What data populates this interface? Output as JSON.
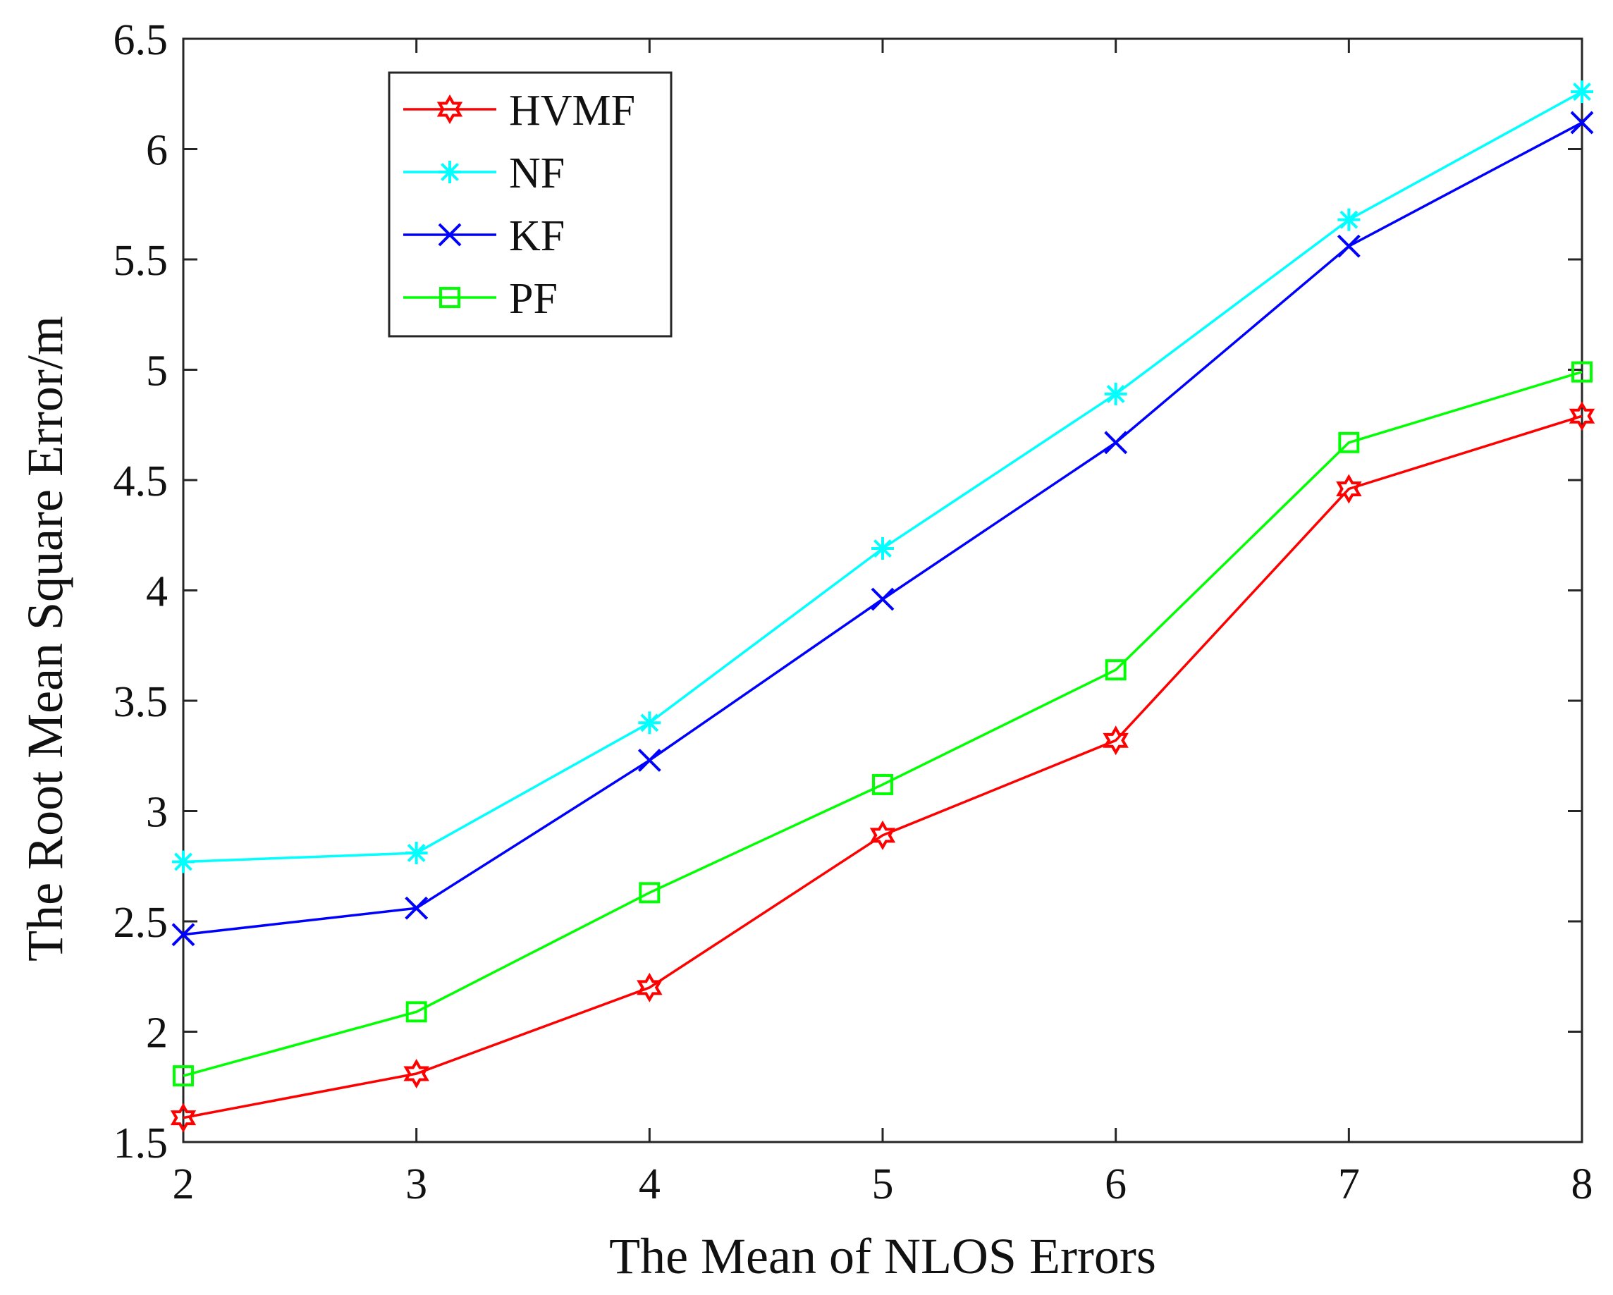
{
  "chart_data": {
    "type": "line",
    "title": "",
    "xlabel": "The Mean of NLOS Errors",
    "ylabel": "The Root Mean Square Error/m",
    "x": [
      2,
      3,
      4,
      5,
      6,
      7,
      8
    ],
    "xlim": [
      2,
      8
    ],
    "ylim": [
      1.5,
      6.5
    ],
    "xticks": [
      2,
      3,
      4,
      5,
      6,
      7,
      8
    ],
    "yticks": [
      1.5,
      2,
      2.5,
      3,
      3.5,
      4,
      4.5,
      5,
      5.5,
      6,
      6.5
    ],
    "grid": false,
    "legend_position": "top-left",
    "series": [
      {
        "name": "HVMF",
        "color": "#ff0000",
        "marker": "hexagram",
        "values": [
          1.61,
          1.81,
          2.2,
          2.89,
          3.32,
          4.46,
          4.79
        ]
      },
      {
        "name": "NF",
        "color": "#00ffff",
        "marker": "asterisk",
        "values": [
          2.77,
          2.81,
          3.4,
          4.19,
          4.89,
          5.68,
          6.26
        ]
      },
      {
        "name": "KF",
        "color": "#0000ff",
        "marker": "x",
        "values": [
          2.44,
          2.56,
          3.23,
          3.96,
          4.67,
          5.56,
          6.12
        ]
      },
      {
        "name": "PF",
        "color": "#00ff00",
        "marker": "square",
        "values": [
          1.8,
          2.09,
          2.63,
          3.12,
          3.64,
          4.67,
          4.99
        ]
      }
    ]
  }
}
